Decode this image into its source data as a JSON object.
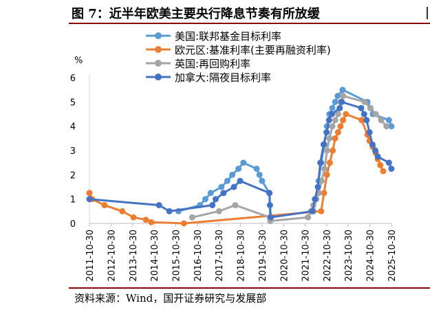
{
  "title": "图 7：近半年欧美主要央行降息节奏有所放缓",
  "source": "资料来源：Wind，国开证券研究与发展部",
  "chart_data": {
    "type": "line",
    "ylabel": "%",
    "ylim": [
      0,
      6
    ],
    "yticks": [
      0,
      1,
      2,
      3,
      4,
      5,
      6
    ],
    "xlim": [
      "2011-10-30",
      "2025-10-30"
    ],
    "xticks": [
      "2011-10-30",
      "2012-10-30",
      "2013-10-30",
      "2014-10-30",
      "2015-10-30",
      "2016-10-30",
      "2017-10-30",
      "2018-10-30",
      "2019-10-30",
      "2020-10-30",
      "2021-10-30",
      "2022-10-30",
      "2023-10-30",
      "2024-10-30",
      "2025-10-30"
    ],
    "legend_position": "top-left",
    "series": [
      {
        "name": "美国:联邦基金目标利率",
        "color": "#5b9bd5",
        "points": [
          [
            "2015-12-16",
            0.5
          ],
          [
            "2016-12-14",
            0.75
          ],
          [
            "2017-03-15",
            1.0
          ],
          [
            "2017-06-14",
            1.25
          ],
          [
            "2017-12-13",
            1.5
          ],
          [
            "2018-03-21",
            1.75
          ],
          [
            "2018-06-13",
            2.0
          ],
          [
            "2018-09-26",
            2.25
          ],
          [
            "2018-12-19",
            2.5
          ],
          [
            "2019-07-31",
            2.25
          ],
          [
            "2019-09-18",
            2.0
          ],
          [
            "2019-10-30",
            1.75
          ],
          [
            "2020-03-03",
            1.25
          ],
          [
            "2020-03-16",
            0.25
          ],
          [
            "2022-03-16",
            0.5
          ],
          [
            "2022-05-04",
            1.0
          ],
          [
            "2022-06-15",
            1.75
          ],
          [
            "2022-07-27",
            2.5
          ],
          [
            "2022-09-21",
            3.25
          ],
          [
            "2022-11-02",
            4.0
          ],
          [
            "2022-12-14",
            4.5
          ],
          [
            "2023-02-01",
            4.75
          ],
          [
            "2023-03-22",
            5.0
          ],
          [
            "2023-05-03",
            5.25
          ],
          [
            "2023-07-26",
            5.5
          ],
          [
            "2024-09-18",
            5.0
          ],
          [
            "2024-11-07",
            4.75
          ],
          [
            "2024-12-18",
            4.5
          ],
          [
            "2025-09-17",
            4.25
          ],
          [
            "2025-10-29",
            4.0
          ]
        ]
      },
      {
        "name": "欧元区:基准利率(主要再融资利率)",
        "color": "#ed7d31",
        "points": [
          [
            "2011-10-30",
            1.25
          ],
          [
            "2011-12-14",
            1.0
          ],
          [
            "2012-07-11",
            0.75
          ],
          [
            "2013-05-08",
            0.5
          ],
          [
            "2013-11-13",
            0.25
          ],
          [
            "2014-06-11",
            0.15
          ],
          [
            "2014-09-10",
            0.05
          ],
          [
            "2016-03-16",
            0.0
          ],
          [
            "2022-07-27",
            0.5
          ],
          [
            "2022-09-14",
            1.25
          ],
          [
            "2022-11-02",
            2.0
          ],
          [
            "2022-12-21",
            2.5
          ],
          [
            "2023-02-08",
            3.0
          ],
          [
            "2023-03-22",
            3.5
          ],
          [
            "2023-05-10",
            3.75
          ],
          [
            "2023-06-21",
            4.0
          ],
          [
            "2023-08-02",
            4.25
          ],
          [
            "2023-09-20",
            4.5
          ],
          [
            "2024-06-12",
            4.25
          ],
          [
            "2024-09-18",
            3.65
          ],
          [
            "2024-10-23",
            3.4
          ],
          [
            "2024-12-18",
            3.15
          ],
          [
            "2025-02-05",
            2.9
          ],
          [
            "2025-03-12",
            2.65
          ],
          [
            "2025-04-23",
            2.4
          ],
          [
            "2025-06-11",
            2.15
          ]
        ]
      },
      {
        "name": "英国:再回购利率",
        "color": "#a5a5a5",
        "points": [
          [
            "2016-08-04",
            0.25
          ],
          [
            "2017-11-02",
            0.5
          ],
          [
            "2018-08-02",
            0.75
          ],
          [
            "2020-03-11",
            0.25
          ],
          [
            "2020-03-19",
            0.1
          ],
          [
            "2021-12-16",
            0.25
          ],
          [
            "2022-02-03",
            0.5
          ],
          [
            "2022-03-17",
            0.75
          ],
          [
            "2022-05-05",
            1.0
          ],
          [
            "2022-06-16",
            1.25
          ],
          [
            "2022-08-04",
            1.75
          ],
          [
            "2022-09-22",
            2.25
          ],
          [
            "2022-11-03",
            3.0
          ],
          [
            "2022-12-15",
            3.5
          ],
          [
            "2023-02-02",
            4.0
          ],
          [
            "2023-03-23",
            4.25
          ],
          [
            "2023-05-11",
            4.5
          ],
          [
            "2023-06-22",
            5.0
          ],
          [
            "2023-08-03",
            5.25
          ],
          [
            "2024-08-01",
            5.0
          ],
          [
            "2024-11-07",
            4.75
          ],
          [
            "2025-02-06",
            4.5
          ],
          [
            "2025-05-08",
            4.25
          ],
          [
            "2025-08-07",
            4.0
          ]
        ]
      },
      {
        "name": "加拿大:隔夜目标利率",
        "color": "#4472c4",
        "points": [
          [
            "2011-10-30",
            1.0
          ],
          [
            "2015-01-21",
            0.75
          ],
          [
            "2015-07-15",
            0.5
          ],
          [
            "2017-07-12",
            0.75
          ],
          [
            "2017-09-06",
            1.0
          ],
          [
            "2018-01-17",
            1.25
          ],
          [
            "2018-07-11",
            1.5
          ],
          [
            "2018-10-24",
            1.75
          ],
          [
            "2020-03-04",
            1.25
          ],
          [
            "2020-03-13",
            0.75
          ],
          [
            "2020-03-27",
            0.25
          ],
          [
            "2022-03-02",
            0.5
          ],
          [
            "2022-04-13",
            1.0
          ],
          [
            "2022-06-01",
            1.5
          ],
          [
            "2022-07-13",
            2.5
          ],
          [
            "2022-09-07",
            3.25
          ],
          [
            "2022-10-26",
            3.75
          ],
          [
            "2022-12-07",
            4.25
          ],
          [
            "2023-01-25",
            4.5
          ],
          [
            "2023-06-07",
            4.75
          ],
          [
            "2023-07-12",
            5.0
          ],
          [
            "2024-06-05",
            4.75
          ],
          [
            "2024-07-24",
            4.5
          ],
          [
            "2024-09-04",
            4.25
          ],
          [
            "2024-10-23",
            3.75
          ],
          [
            "2024-12-11",
            3.25
          ],
          [
            "2025-01-29",
            3.0
          ],
          [
            "2025-03-12",
            2.75
          ],
          [
            "2025-09-17",
            2.5
          ],
          [
            "2025-10-29",
            2.25
          ]
        ]
      }
    ]
  }
}
